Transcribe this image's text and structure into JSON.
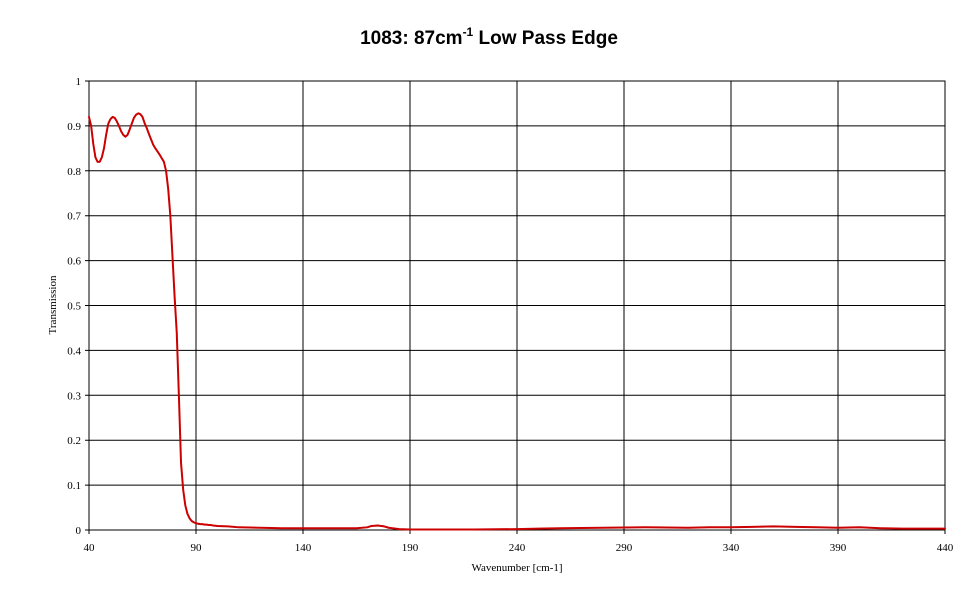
{
  "chart_data": {
    "type": "line",
    "title": {
      "main": "1083: 87cm",
      "superscript": "-1",
      "rest": " Low Pass Edge"
    },
    "xlabel": "Wavenumber [cm-1]",
    "ylabel": "Transmission",
    "xlim": [
      40,
      440
    ],
    "ylim": [
      0,
      1
    ],
    "x_ticks": [
      "40",
      "90",
      "140",
      "190",
      "240",
      "290",
      "340",
      "390",
      "440"
    ],
    "y_ticks": [
      "0",
      "0.1",
      "0.2",
      "0.3",
      "0.4",
      "0.5",
      "0.6",
      "0.7",
      "0.8",
      "0.9",
      "1"
    ],
    "grid": true,
    "line_color": "#cc0000",
    "series": [
      {
        "x": [
          40,
          41,
          42,
          43,
          44,
          45,
          46,
          47,
          48,
          49,
          50,
          51,
          52,
          53,
          54,
          55,
          56,
          57,
          58,
          59,
          60,
          61,
          62,
          63,
          64,
          65,
          66,
          67,
          68,
          69,
          70,
          71,
          72,
          73,
          74,
          75,
          76,
          77,
          78,
          79,
          80,
          81,
          82,
          83,
          84,
          85,
          86,
          87,
          88,
          89,
          90,
          91,
          92,
          93,
          94,
          95,
          96,
          97,
          98,
          100,
          105,
          110,
          120,
          130,
          150,
          165,
          170,
          172,
          175,
          178,
          180,
          185,
          190,
          200,
          220,
          240,
          250,
          260,
          280,
          300,
          320,
          330,
          340,
          350,
          360,
          370,
          380,
          390,
          400,
          410,
          420,
          440
        ],
        "y": [
          0.92,
          0.9,
          0.86,
          0.83,
          0.82,
          0.82,
          0.83,
          0.85,
          0.88,
          0.905,
          0.915,
          0.92,
          0.918,
          0.91,
          0.9,
          0.888,
          0.88,
          0.876,
          0.88,
          0.892,
          0.905,
          0.918,
          0.925,
          0.928,
          0.926,
          0.92,
          0.906,
          0.895,
          0.882,
          0.87,
          0.858,
          0.85,
          0.843,
          0.836,
          0.828,
          0.82,
          0.8,
          0.76,
          0.7,
          0.61,
          0.52,
          0.44,
          0.3,
          0.15,
          0.09,
          0.055,
          0.036,
          0.026,
          0.02,
          0.017,
          0.015,
          0.014,
          0.013,
          0.013,
          0.012,
          0.012,
          0.011,
          0.011,
          0.01,
          0.009,
          0.008,
          0.006,
          0.005,
          0.004,
          0.004,
          0.004,
          0.006,
          0.009,
          0.01,
          0.008,
          0.005,
          0.002,
          0.001,
          0.001,
          0.001,
          0.002,
          0.003,
          0.004,
          0.005,
          0.006,
          0.005,
          0.006,
          0.006,
          0.007,
          0.008,
          0.007,
          0.006,
          0.005,
          0.006,
          0.004,
          0.003,
          0.003
        ]
      }
    ]
  }
}
